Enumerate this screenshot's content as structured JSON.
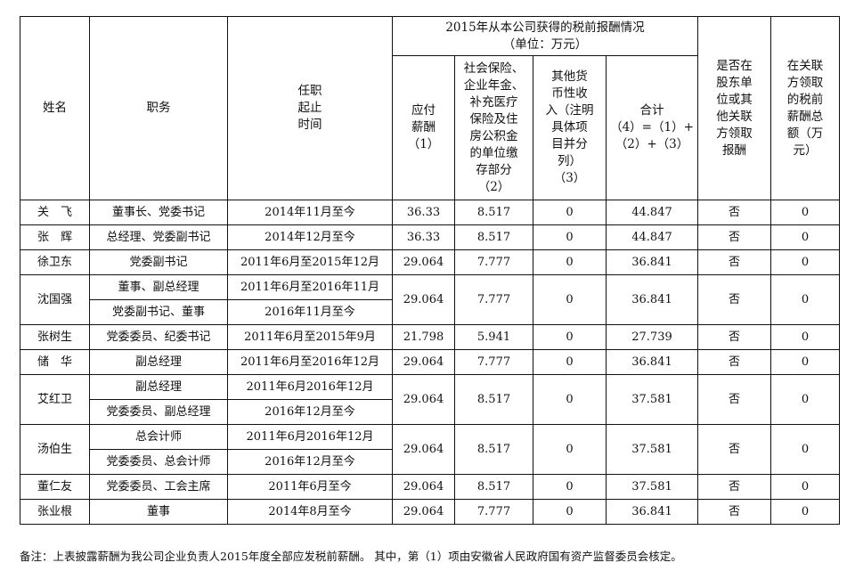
{
  "headers": {
    "name": "姓名",
    "position": "职务",
    "term": "任职\n起止\n时间",
    "group": "2015年从本公司获得的税前报酬情况\n（单位：万元）",
    "salary": "应付\n薪酬\n（1）",
    "social": "社会保险、\n企业年金、\n补充医疗\n保险及住\n房公积金\n的单位缴\n存部分\n（2）",
    "other": "其他货\n币性收\n入（注明\n具体项\n目并分\n列）\n（3）",
    "total": "合计\n（4）=（1）+\n（2）+（3）",
    "related": "是否在\n股东单\n位或其\n他关联\n方领取\n报酬",
    "related_amount": "在关联\n方领取\n的税前\n薪酬总\n额（万\n元）"
  },
  "rows": [
    {
      "name": "关　飞",
      "roles": [
        {
          "title": "董事长、党委书记",
          "period": "2014年11月至今"
        }
      ],
      "salary": "36.33",
      "social": "8.517",
      "other": "0",
      "total": "44.847",
      "related": "否",
      "related_amount": "0"
    },
    {
      "name": "张　辉",
      "roles": [
        {
          "title": "总经理、党委副书记",
          "period": "2014年12月至今"
        }
      ],
      "salary": "36.33",
      "social": "8.517",
      "other": "0",
      "total": "44.847",
      "related": "否",
      "related_amount": "0"
    },
    {
      "name": "徐卫东",
      "roles": [
        {
          "title": "党委副书记",
          "period": "2011年6月至2015年12月"
        }
      ],
      "salary": "29.064",
      "social": "7.777",
      "other": "0",
      "total": "36.841",
      "related": "否",
      "related_amount": "0"
    },
    {
      "name": "沈国强",
      "roles": [
        {
          "title": "董事、副总经理",
          "period": "2011年6月至2016年11月"
        },
        {
          "title": "党委副书记、董事",
          "period": "2016年11月至今"
        }
      ],
      "salary": "29.064",
      "social": "7.777",
      "other": "0",
      "total": "36.841",
      "related": "否",
      "related_amount": "0"
    },
    {
      "name": "张树生",
      "roles": [
        {
          "title": "党委委员、纪委书记",
          "period": "2011年6月至2015年9月"
        }
      ],
      "salary": "21.798",
      "social": "5.941",
      "other": "0",
      "total": "27.739",
      "related": "否",
      "related_amount": "0"
    },
    {
      "name": "储　华",
      "roles": [
        {
          "title": "副总经理",
          "period": "2011年6月至2016年12月"
        }
      ],
      "salary": "29.064",
      "social": "7.777",
      "other": "0",
      "total": "36.841",
      "related": "否",
      "related_amount": "0"
    },
    {
      "name": "艾红卫",
      "roles": [
        {
          "title": "副总经理",
          "period": "2011年6月2016年12月"
        },
        {
          "title": "党委委员、副总经理",
          "period": "2016年12月至今"
        }
      ],
      "salary": "29.064",
      "social": "8.517",
      "other": "0",
      "total": "37.581",
      "related": "否",
      "related_amount": "0"
    },
    {
      "name": "汤伯生",
      "roles": [
        {
          "title": "总会计师",
          "period": "2011年6月2016年12月"
        },
        {
          "title": "党委委员、总会计师",
          "period": "2016年12月至今"
        }
      ],
      "salary": "29.064",
      "social": "8.517",
      "other": "0",
      "total": "37.581",
      "related": "否",
      "related_amount": "0"
    },
    {
      "name": "董仁友",
      "roles": [
        {
          "title": "党委委员、工会主席",
          "period": "2011年6月至今"
        }
      ],
      "salary": "29.064",
      "social": "8.517",
      "other": "0",
      "total": "37.581",
      "related": "否",
      "related_amount": "0"
    },
    {
      "name": "张业根",
      "roles": [
        {
          "title": "董事",
          "period": "2014年8月至今"
        }
      ],
      "salary": "29.064",
      "social": "7.777",
      "other": "0",
      "total": "36.841",
      "related": "否",
      "related_amount": "0"
    }
  ],
  "note": "备注：上表披露薪酬为我公司企业负责人2015年度全部应发税前薪酬。 其中，第（1）项由安徽省人民政府国有资产监督委员会核定。"
}
